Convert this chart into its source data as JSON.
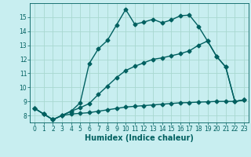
{
  "xlabel": "Humidex (Indice chaleur)",
  "bg_color": "#c8eef0",
  "grid_color": "#a8d8d0",
  "line_color": "#006060",
  "xlim": [
    -0.5,
    23.5
  ],
  "ylim": [
    7.5,
    16.0
  ],
  "xticks": [
    0,
    1,
    2,
    3,
    4,
    5,
    6,
    7,
    8,
    9,
    10,
    11,
    12,
    13,
    14,
    15,
    16,
    17,
    18,
    19,
    20,
    21,
    22,
    23
  ],
  "yticks": [
    8,
    9,
    10,
    11,
    12,
    13,
    14,
    15
  ],
  "curve1_x": [
    0,
    1,
    2,
    3,
    4,
    5,
    6,
    7,
    8,
    9,
    10,
    11,
    12,
    13,
    14,
    15,
    16,
    17,
    18,
    19,
    20,
    21,
    22,
    23
  ],
  "curve1_y": [
    8.5,
    8.1,
    7.7,
    8.0,
    8.3,
    8.9,
    11.7,
    12.75,
    13.35,
    14.45,
    15.55,
    14.5,
    14.65,
    14.85,
    14.6,
    14.8,
    15.1,
    15.15,
    14.35,
    13.3,
    12.2,
    11.45,
    9.0,
    9.1
  ],
  "curve2_x": [
    0,
    1,
    2,
    3,
    4,
    5,
    6,
    7,
    8,
    9,
    10,
    11,
    12,
    13,
    14,
    15,
    16,
    17,
    18,
    19,
    20,
    21,
    22,
    23
  ],
  "curve2_y": [
    8.5,
    8.1,
    7.7,
    8.0,
    8.3,
    8.55,
    8.85,
    9.5,
    10.1,
    10.7,
    11.2,
    11.5,
    11.75,
    12.0,
    12.1,
    12.25,
    12.4,
    12.6,
    13.0,
    13.3,
    12.2,
    11.45,
    9.0,
    9.1
  ],
  "curve3_x": [
    0,
    1,
    2,
    3,
    4,
    5,
    6,
    7,
    8,
    9,
    10,
    11,
    12,
    13,
    14,
    15,
    16,
    17,
    18,
    19,
    20,
    21,
    22,
    23
  ],
  "curve3_y": [
    8.5,
    8.1,
    7.7,
    8.0,
    8.1,
    8.15,
    8.2,
    8.3,
    8.4,
    8.5,
    8.6,
    8.65,
    8.7,
    8.75,
    8.8,
    8.85,
    8.9,
    8.92,
    8.95,
    8.97,
    9.0,
    9.0,
    9.0,
    9.1
  ],
  "xlabel_fontsize": 7,
  "tick_fontsize": 5.5,
  "linewidth": 1.0,
  "markersize": 2.5
}
